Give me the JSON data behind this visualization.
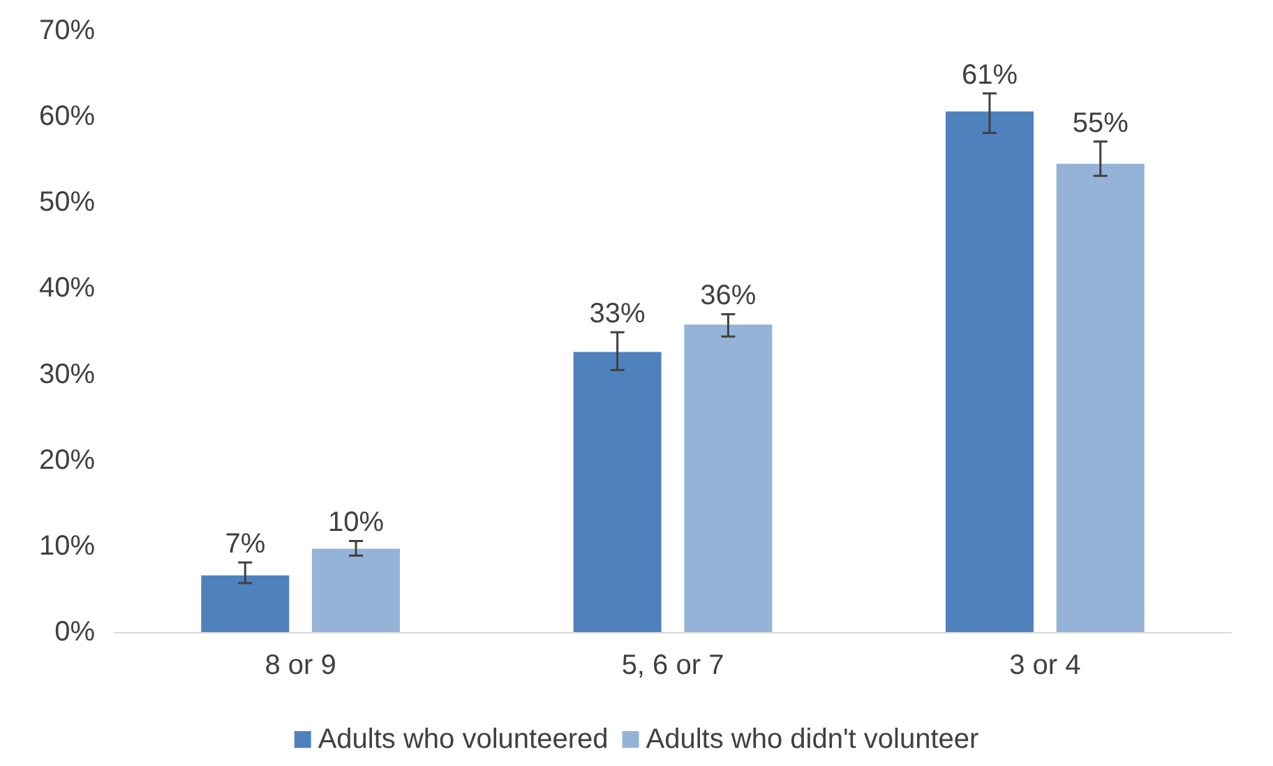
{
  "chart_data": {
    "type": "bar",
    "categories": [
      "8 or 9",
      "5, 6 or 7",
      "3 or 4"
    ],
    "series": [
      {
        "name": "Adults who volunteered",
        "color": "#4f81bd",
        "values": [
          6.6,
          32.6,
          60.6
        ],
        "value_labels": [
          "7%",
          "33%",
          "61%"
        ],
        "errors": [
          [
            5.7,
            8.1
          ],
          [
            30.5,
            34.9
          ],
          [
            58.1,
            62.7
          ]
        ]
      },
      {
        "name": "Adults who didn't volunteer",
        "color": "#95b3d7",
        "values": [
          9.7,
          35.8,
          54.5
        ],
        "value_labels": [
          "10%",
          "36%",
          "55%"
        ],
        "errors": [
          [
            8.9,
            10.6
          ],
          [
            34.4,
            37.0
          ],
          [
            53.1,
            57.1
          ]
        ]
      }
    ],
    "ylim": [
      0,
      70
    ],
    "yticks": [
      {
        "value": 0,
        "label": "0%"
      },
      {
        "value": 10,
        "label": "10%"
      },
      {
        "value": 20,
        "label": "20%"
      },
      {
        "value": 30,
        "label": "30%"
      },
      {
        "value": 40,
        "label": "40%"
      },
      {
        "value": 50,
        "label": "50%"
      },
      {
        "value": 60,
        "label": "60%"
      },
      {
        "value": 70,
        "label": "70%"
      }
    ],
    "grid": false,
    "legend": "bottom"
  }
}
